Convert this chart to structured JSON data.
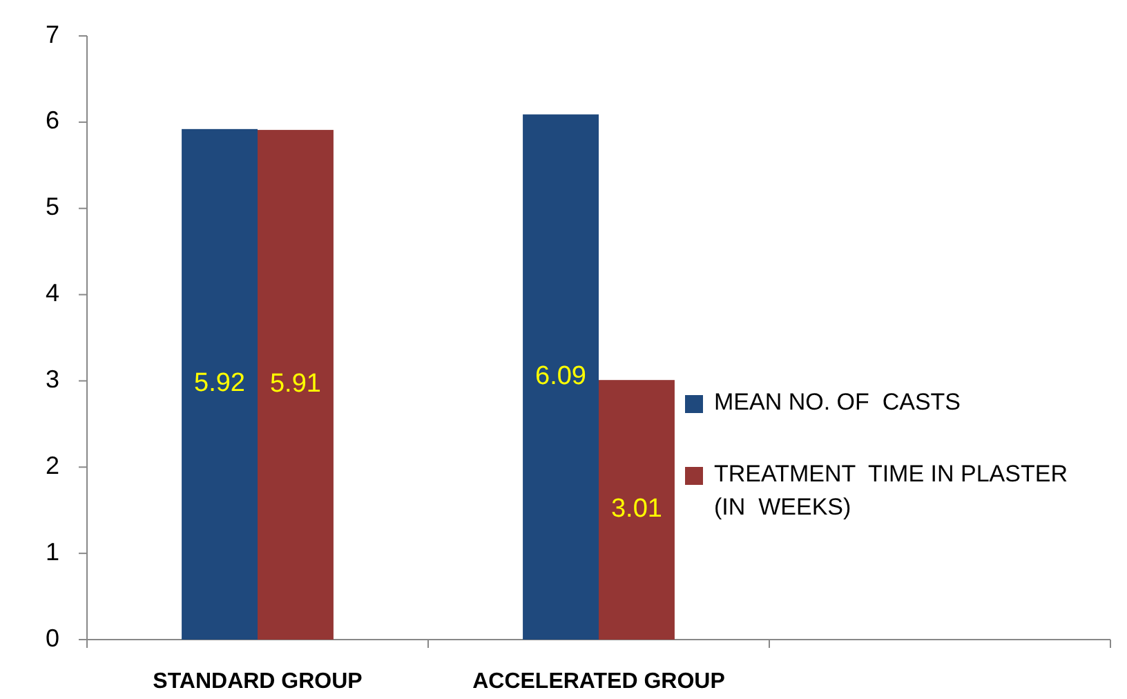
{
  "chart_data": {
    "type": "bar",
    "categories": [
      "STANDARD GROUP",
      "ACCELERATED GROUP",
      null
    ],
    "series": [
      {
        "name": "MEAN NO. OF  CASTS",
        "color": "#1f497d",
        "values": [
          5.92,
          6.09,
          null
        ]
      },
      {
        "name": "TREATMENT  TIME IN PLASTER (IN  WEEKS)",
        "color": "#943634",
        "values": [
          5.91,
          3.01,
          null
        ]
      }
    ],
    "ylim": [
      0,
      7
    ],
    "yticks": [
      0,
      1,
      2,
      3,
      4,
      5,
      6,
      7
    ],
    "data_labels": true,
    "legend": "right",
    "grid": false
  }
}
